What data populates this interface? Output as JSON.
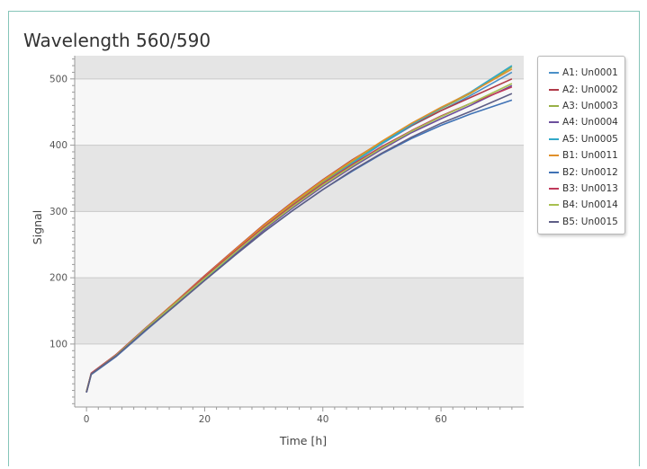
{
  "chart_data": {
    "type": "line",
    "title": "Wavelength 560/590",
    "xlabel": "Time [h]",
    "ylabel": "Signal",
    "xlim": [
      -2,
      74
    ],
    "ylim": [
      5,
      535
    ],
    "xticks": [
      0,
      20,
      40,
      60
    ],
    "yticks": [
      100,
      200,
      300,
      400,
      500
    ],
    "grid": true,
    "legend_position": "right",
    "x": [
      0,
      0.8,
      5,
      10,
      15,
      20,
      25,
      30,
      35,
      40,
      45,
      50,
      55,
      60,
      65,
      72
    ],
    "series": [
      {
        "name": "A1: Un0001",
        "color": "#4a90c8",
        "values": [
          28,
          55,
          82,
          122,
          160,
          199,
          238,
          275,
          310,
          343,
          373,
          402,
          429,
          452,
          475,
          510
        ]
      },
      {
        "name": "A2: Un0002",
        "color": "#b03a48",
        "values": [
          28,
          56,
          84,
          124,
          163,
          203,
          242,
          280,
          315,
          348,
          378,
          405,
          430,
          452,
          472,
          500
        ]
      },
      {
        "name": "A3: Un0003",
        "color": "#98b046",
        "values": [
          28,
          55,
          83,
          123,
          161,
          200,
          239,
          277,
          312,
          345,
          375,
          404,
          431,
          455,
          478,
          518
        ]
      },
      {
        "name": "A4: Un0004",
        "color": "#6c4f9c",
        "values": [
          27,
          55,
          82,
          121,
          159,
          197,
          235,
          272,
          306,
          338,
          367,
          394,
          419,
          440,
          460,
          490
        ]
      },
      {
        "name": "A5: Un0005",
        "color": "#32a8c8",
        "values": [
          28,
          55,
          83,
          122,
          160,
          198,
          237,
          274,
          309,
          342,
          373,
          403,
          431,
          456,
          480,
          520
        ]
      },
      {
        "name": "B1: Un0011",
        "color": "#e0902a",
        "values": [
          28,
          56,
          84,
          124,
          163,
          202,
          241,
          279,
          314,
          347,
          377,
          406,
          433,
          457,
          479,
          515
        ]
      },
      {
        "name": "B2: Un0012",
        "color": "#3f72b5",
        "values": [
          27,
          54,
          81,
          120,
          158,
          196,
          233,
          269,
          302,
          333,
          361,
          387,
          410,
          430,
          447,
          468
        ]
      },
      {
        "name": "B3: Un0013",
        "color": "#c0395a",
        "values": [
          28,
          56,
          84,
          124,
          162,
          201,
          239,
          276,
          310,
          342,
          371,
          398,
          422,
          444,
          463,
          488
        ]
      },
      {
        "name": "B4: Un0014",
        "color": "#a8c050",
        "values": [
          28,
          55,
          83,
          123,
          161,
          199,
          237,
          274,
          308,
          340,
          369,
          396,
          421,
          443,
          463,
          493
        ]
      },
      {
        "name": "B5: Un0015",
        "color": "#5e5e86",
        "values": [
          27,
          55,
          82,
          121,
          158,
          196,
          233,
          269,
          302,
          333,
          362,
          388,
          412,
          433,
          451,
          478
        ]
      }
    ]
  }
}
